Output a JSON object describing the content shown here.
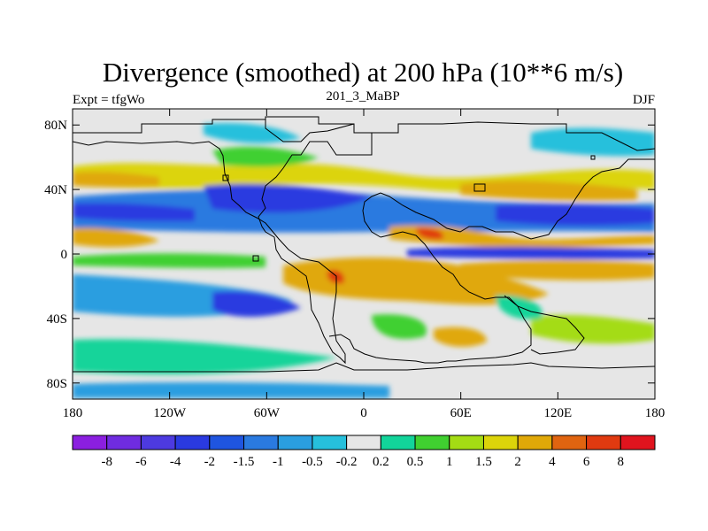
{
  "chart_data": {
    "type": "heatmap",
    "title": "Divergence (smoothed) at 200 hPa (10**6 m/s)",
    "left_string": "Expt = tfgWo",
    "center_string": "201_3_MaBP",
    "right_string": "DJF",
    "x_ticks": [
      {
        "value": -180,
        "label": "180"
      },
      {
        "value": -120,
        "label": "120W"
      },
      {
        "value": -60,
        "label": "60W"
      },
      {
        "value": 0,
        "label": "0"
      },
      {
        "value": 60,
        "label": "60E"
      },
      {
        "value": 120,
        "label": "120E"
      },
      {
        "value": 180,
        "label": "180"
      }
    ],
    "y_ticks": [
      {
        "value": 80,
        "label": "80N"
      },
      {
        "value": 40,
        "label": "40N"
      },
      {
        "value": 0,
        "label": "0"
      },
      {
        "value": -40,
        "label": "40S"
      },
      {
        "value": -80,
        "label": "80S"
      }
    ],
    "xlim": [
      -180,
      180
    ],
    "ylim": [
      -90,
      90
    ],
    "colorbar": {
      "levels": [
        "-8",
        "-6",
        "-4",
        "-2",
        "-1.5",
        "-1",
        "-0.5",
        "-0.2",
        "0.2",
        "0.5",
        "1",
        "1.5",
        "2",
        "4",
        "6",
        "8"
      ],
      "colors": [
        "#8b1fe0",
        "#6f2ce0",
        "#4d3ae0",
        "#2a3ae0",
        "#1f55e0",
        "#2a7ae0",
        "#2a9ee0",
        "#26c0dc",
        "#e6e6e6",
        "#12d49a",
        "#40d030",
        "#a4dc14",
        "#dcd40a",
        "#e0a808",
        "#e06410",
        "#e03a10",
        "#e0141e"
      ]
    },
    "fields": [
      {
        "lon": -150,
        "lat": 28,
        "value": -2.5
      },
      {
        "lon": -80,
        "lat": 25,
        "value": -2.5
      },
      {
        "lon": -40,
        "lat": 22,
        "value": -3
      },
      {
        "lon": 120,
        "lat": 28,
        "value": -3
      },
      {
        "lon": 100,
        "lat": 0,
        "value": -3
      },
      {
        "lon": -90,
        "lat": 45,
        "value": 1.5
      },
      {
        "lon": 20,
        "lat": 40,
        "value": 1
      },
      {
        "lon": 120,
        "lat": 10,
        "value": 2
      },
      {
        "lon": 130,
        "lat": 42,
        "value": 2
      },
      {
        "lon": -160,
        "lat": 10,
        "value": 2
      },
      {
        "lon": -150,
        "lat": 45,
        "value": 1.5
      },
      {
        "lon": 20,
        "lat": -20,
        "value": 2.5
      },
      {
        "lon": -15,
        "lat": -18,
        "value": 4
      },
      {
        "lon": 40,
        "lat": 12,
        "value": 4
      },
      {
        "lon": 50,
        "lat": -40,
        "value": 1.5
      },
      {
        "lon": 130,
        "lat": -45,
        "value": 1.5
      },
      {
        "lon": -110,
        "lat": -30,
        "value": -1
      },
      {
        "lon": -70,
        "lat": -12,
        "value": -5
      },
      {
        "lon": -60,
        "lat": -65,
        "value": 1
      },
      {
        "lon": 150,
        "lat": 70,
        "value": -1
      }
    ]
  }
}
